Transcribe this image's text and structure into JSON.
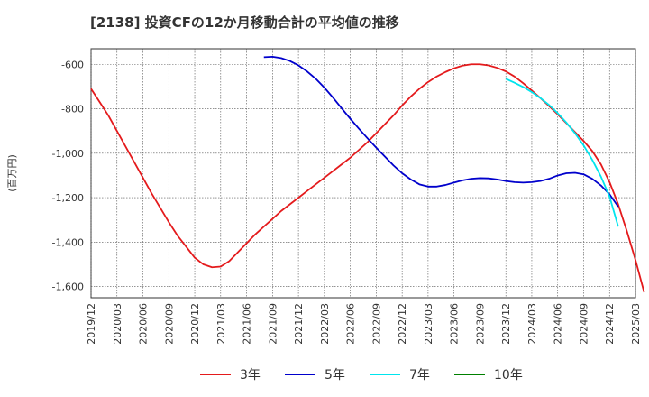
{
  "chart_data": {
    "type": "line",
    "title": "[2138]  投資CFの12か月移動合計の平均値の推移",
    "ylabel": "(百万円)",
    "xlabel": "",
    "ylim": [
      -1650,
      -530
    ],
    "yticks": [
      -600,
      -800,
      -1000,
      -1200,
      -1400,
      -1600
    ],
    "ytick_labels": [
      "-600",
      "-800",
      "-1,000",
      "-1,200",
      "-1,400",
      "-1,600"
    ],
    "xticks": [
      "2019/12",
      "2020/03",
      "2020/06",
      "2020/09",
      "2020/12",
      "2021/03",
      "2021/06",
      "2021/09",
      "2021/12",
      "2022/03",
      "2022/06",
      "2022/09",
      "2022/12",
      "2023/03",
      "2023/06",
      "2023/09",
      "2023/12",
      "2024/03",
      "2024/06",
      "2024/09",
      "2024/12",
      "2025/03"
    ],
    "grid": true,
    "legend_position": "bottom",
    "series": [
      {
        "name": "3年",
        "color": "#e41a1c",
        "points": [
          [
            "2019/12",
            -710
          ],
          [
            "2020/01",
            -770
          ],
          [
            "2020/02",
            -830
          ],
          [
            "2020/03",
            -900
          ],
          [
            "2020/04",
            -970
          ],
          [
            "2020/05",
            -1040
          ],
          [
            "2020/06",
            -1110
          ],
          [
            "2020/07",
            -1180
          ],
          [
            "2020/08",
            -1245
          ],
          [
            "2020/09",
            -1310
          ],
          [
            "2020/10",
            -1370
          ],
          [
            "2020/11",
            -1420
          ],
          [
            "2020/12",
            -1470
          ],
          [
            "2021/01",
            -1500
          ],
          [
            "2021/02",
            -1513
          ],
          [
            "2021/03",
            -1510
          ],
          [
            "2021/04",
            -1485
          ],
          [
            "2021/05",
            -1445
          ],
          [
            "2021/06",
            -1405
          ],
          [
            "2021/07",
            -1365
          ],
          [
            "2021/08",
            -1330
          ],
          [
            "2021/09",
            -1295
          ],
          [
            "2021/10",
            -1260
          ],
          [
            "2021/11",
            -1230
          ],
          [
            "2021/12",
            -1200
          ],
          [
            "2022/01",
            -1170
          ],
          [
            "2022/02",
            -1140
          ],
          [
            "2022/03",
            -1110
          ],
          [
            "2022/04",
            -1080
          ],
          [
            "2022/05",
            -1050
          ],
          [
            "2022/06",
            -1020
          ],
          [
            "2022/07",
            -985
          ],
          [
            "2022/08",
            -950
          ],
          [
            "2022/09",
            -910
          ],
          [
            "2022/10",
            -870
          ],
          [
            "2022/11",
            -830
          ],
          [
            "2022/12",
            -785
          ],
          [
            "2023/01",
            -745
          ],
          [
            "2023/02",
            -710
          ],
          [
            "2023/03",
            -680
          ],
          [
            "2023/04",
            -655
          ],
          [
            "2023/05",
            -635
          ],
          [
            "2023/06",
            -618
          ],
          [
            "2023/07",
            -606
          ],
          [
            "2023/08",
            -600
          ],
          [
            "2023/09",
            -600
          ],
          [
            "2023/10",
            -605
          ],
          [
            "2023/11",
            -616
          ],
          [
            "2023/12",
            -632
          ],
          [
            "2024/01",
            -655
          ],
          [
            "2024/02",
            -685
          ],
          [
            "2024/03",
            -718
          ],
          [
            "2024/04",
            -752
          ],
          [
            "2024/05",
            -788
          ],
          [
            "2024/06",
            -825
          ],
          [
            "2024/07",
            -865
          ],
          [
            "2024/08",
            -905
          ],
          [
            "2024/09",
            -945
          ],
          [
            "2024/10",
            -990
          ],
          [
            "2024/11",
            -1050
          ],
          [
            "2024/12",
            -1130
          ],
          [
            "2025/01",
            -1230
          ],
          [
            "2025/02",
            -1350
          ],
          [
            "2025/03",
            -1480
          ],
          [
            "2025/04",
            -1625
          ]
        ]
      },
      {
        "name": "5年",
        "color": "#0000cc",
        "points": [
          [
            "2021/08",
            -568
          ],
          [
            "2021/09",
            -566
          ],
          [
            "2021/10",
            -572
          ],
          [
            "2021/11",
            -585
          ],
          [
            "2021/12",
            -605
          ],
          [
            "2022/01",
            -632
          ],
          [
            "2022/02",
            -665
          ],
          [
            "2022/03",
            -705
          ],
          [
            "2022/04",
            -750
          ],
          [
            "2022/05",
            -798
          ],
          [
            "2022/06",
            -845
          ],
          [
            "2022/07",
            -890
          ],
          [
            "2022/08",
            -933
          ],
          [
            "2022/09",
            -975
          ],
          [
            "2022/10",
            -1015
          ],
          [
            "2022/11",
            -1055
          ],
          [
            "2022/12",
            -1090
          ],
          [
            "2023/01",
            -1118
          ],
          [
            "2023/02",
            -1140
          ],
          [
            "2023/03",
            -1150
          ],
          [
            "2023/04",
            -1150
          ],
          [
            "2023/05",
            -1143
          ],
          [
            "2023/06",
            -1132
          ],
          [
            "2023/07",
            -1122
          ],
          [
            "2023/08",
            -1115
          ],
          [
            "2023/09",
            -1112
          ],
          [
            "2023/10",
            -1113
          ],
          [
            "2023/11",
            -1118
          ],
          [
            "2023/12",
            -1125
          ],
          [
            "2024/01",
            -1130
          ],
          [
            "2024/02",
            -1132
          ],
          [
            "2024/03",
            -1130
          ],
          [
            "2024/04",
            -1125
          ],
          [
            "2024/05",
            -1115
          ],
          [
            "2024/06",
            -1100
          ],
          [
            "2024/07",
            -1090
          ],
          [
            "2024/08",
            -1088
          ],
          [
            "2024/09",
            -1095
          ],
          [
            "2024/10",
            -1115
          ],
          [
            "2024/11",
            -1145
          ],
          [
            "2024/12",
            -1185
          ],
          [
            "2025/01",
            -1240
          ]
        ]
      },
      {
        "name": "7年",
        "color": "#00e5ee",
        "points": [
          [
            "2023/12",
            -665
          ],
          [
            "2024/01",
            -683
          ],
          [
            "2024/02",
            -702
          ],
          [
            "2024/03",
            -725
          ],
          [
            "2024/04",
            -752
          ],
          [
            "2024/05",
            -783
          ],
          [
            "2024/06",
            -820
          ],
          [
            "2024/07",
            -862
          ],
          [
            "2024/08",
            -910
          ],
          [
            "2024/09",
            -965
          ],
          [
            "2024/10",
            -1030
          ],
          [
            "2024/11",
            -1105
          ],
          [
            "2024/12",
            -1195
          ],
          [
            "2025/01",
            -1330
          ]
        ]
      },
      {
        "name": "10年",
        "color": "#008000",
        "points": []
      }
    ]
  }
}
